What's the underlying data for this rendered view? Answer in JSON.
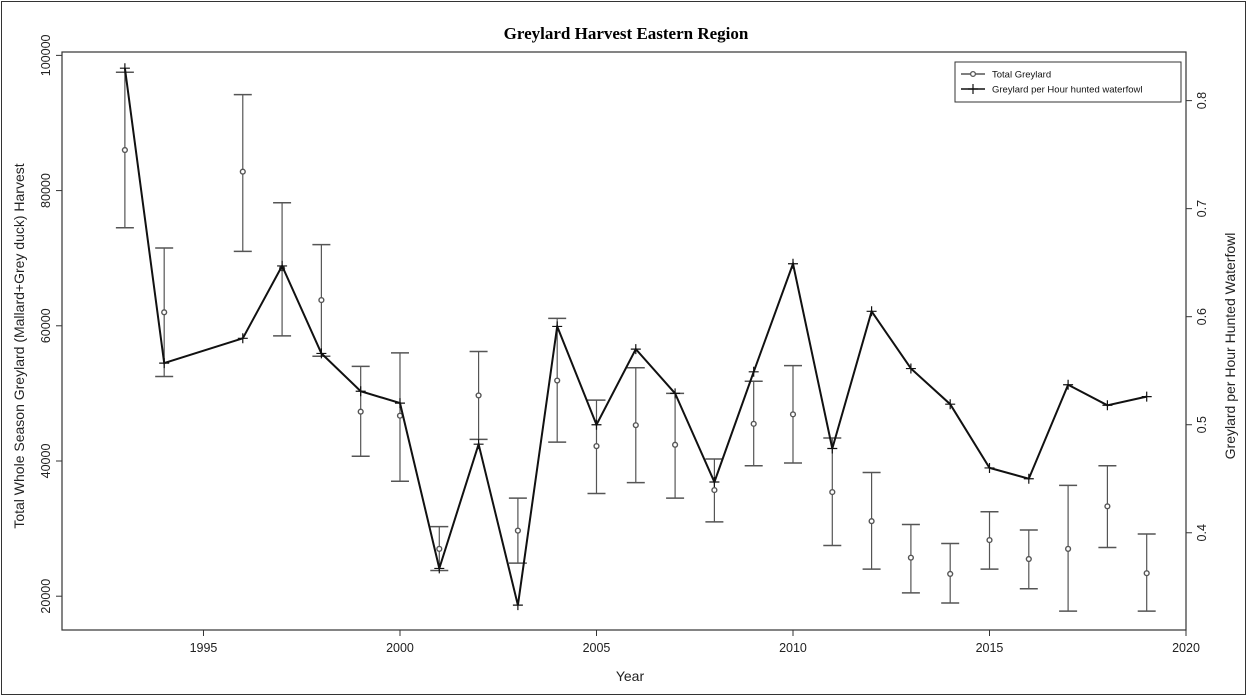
{
  "chart_data": {
    "type": "line",
    "title": "Greylard Harvest Eastern Region",
    "xlabel": "Year",
    "ylabel_left": "Total Whole Season Greylard (Mallard+Grey duck) Harvest",
    "ylabel_right": "Greylard per Hour Hunted Waterfowl",
    "xlim": [
      1991.4,
      2020
    ],
    "ylim_left": [
      15000,
      100500
    ],
    "ylim_right": [
      0.31,
      0.845
    ],
    "x_ticks": [
      1995,
      2000,
      2005,
      2010,
      2015,
      2020
    ],
    "y_left_ticks": [
      20000,
      40000,
      60000,
      80000,
      100000
    ],
    "y_right_ticks": [
      0.4,
      0.5,
      0.6,
      0.7,
      0.8
    ],
    "legend_position": "top-right",
    "series": [
      {
        "name": "Total Greylard",
        "axis": "left",
        "color": "#555555",
        "marker": "circle",
        "connected": false,
        "points": [
          {
            "x": 1993,
            "y": 86000,
            "low": 74500,
            "high": 97500
          },
          {
            "x": 1994,
            "y": 62000,
            "low": 52500,
            "high": 71500
          },
          {
            "x": 1996,
            "y": 82800,
            "low": 71000,
            "high": 94200
          },
          {
            "x": 1997,
            "y": 68500,
            "low": 58500,
            "high": 78200
          },
          {
            "x": 1998,
            "y": 63800,
            "low": 55500,
            "high": 72000
          },
          {
            "x": 1999,
            "y": 47300,
            "low": 40700,
            "high": 54000
          },
          {
            "x": 2000,
            "y": 46700,
            "low": 37000,
            "high": 56000
          },
          {
            "x": 2001,
            "y": 27000,
            "low": 23800,
            "high": 30300
          },
          {
            "x": 2002,
            "y": 49700,
            "low": 43200,
            "high": 56200
          },
          {
            "x": 2003,
            "y": 29700,
            "low": 24900,
            "high": 34500
          },
          {
            "x": 2004,
            "y": 51900,
            "low": 42800,
            "high": 61100
          },
          {
            "x": 2005,
            "y": 42200,
            "low": 35200,
            "high": 49000
          },
          {
            "x": 2006,
            "y": 45300,
            "low": 36800,
            "high": 53800
          },
          {
            "x": 2007,
            "y": 42400,
            "low": 34500,
            "high": 50000
          },
          {
            "x": 2008,
            "y": 35700,
            "low": 31000,
            "high": 40300
          },
          {
            "x": 2009,
            "y": 45500,
            "low": 39300,
            "high": 51800
          },
          {
            "x": 2010,
            "y": 46900,
            "low": 39700,
            "high": 54100
          },
          {
            "x": 2011,
            "y": 35400,
            "low": 27500,
            "high": 43400
          },
          {
            "x": 2012,
            "y": 31100,
            "low": 24000,
            "high": 38300
          },
          {
            "x": 2013,
            "y": 25700,
            "low": 20500,
            "high": 30600
          },
          {
            "x": 2014,
            "y": 23300,
            "low": 19000,
            "high": 27800
          },
          {
            "x": 2015,
            "y": 28300,
            "low": 24000,
            "high": 32500
          },
          {
            "x": 2016,
            "y": 25500,
            "low": 21100,
            "high": 29800
          },
          {
            "x": 2017,
            "y": 27000,
            "low": 17800,
            "high": 36400
          },
          {
            "x": 2018,
            "y": 33300,
            "low": 27200,
            "high": 39300
          },
          {
            "x": 2019,
            "y": 23400,
            "low": 17800,
            "high": 29200
          }
        ]
      },
      {
        "name": "Greylard per Hour hunted waterfowl",
        "axis": "right",
        "color": "#111111",
        "marker": "plus",
        "connected": true,
        "points": [
          {
            "x": 1993,
            "y": 0.83
          },
          {
            "x": 1994,
            "y": 0.557
          },
          {
            "x": 1996,
            "y": 0.58
          },
          {
            "x": 1997,
            "y": 0.647
          },
          {
            "x": 1998,
            "y": 0.566
          },
          {
            "x": 1999,
            "y": 0.531
          },
          {
            "x": 2000,
            "y": 0.52
          },
          {
            "x": 2001,
            "y": 0.367
          },
          {
            "x": 2002,
            "y": 0.482
          },
          {
            "x": 2003,
            "y": 0.333
          },
          {
            "x": 2004,
            "y": 0.591
          },
          {
            "x": 2005,
            "y": 0.5
          },
          {
            "x": 2006,
            "y": 0.57
          },
          {
            "x": 2007,
            "y": 0.529
          },
          {
            "x": 2008,
            "y": 0.447
          },
          {
            "x": 2009,
            "y": 0.549
          },
          {
            "x": 2010,
            "y": 0.649
          },
          {
            "x": 2011,
            "y": 0.478
          },
          {
            "x": 2012,
            "y": 0.605
          },
          {
            "x": 2013,
            "y": 0.552
          },
          {
            "x": 2014,
            "y": 0.519
          },
          {
            "x": 2015,
            "y": 0.46
          },
          {
            "x": 2016,
            "y": 0.45
          },
          {
            "x": 2017,
            "y": 0.537
          },
          {
            "x": 2018,
            "y": 0.518
          },
          {
            "x": 2019,
            "y": 0.526
          }
        ]
      }
    ]
  }
}
